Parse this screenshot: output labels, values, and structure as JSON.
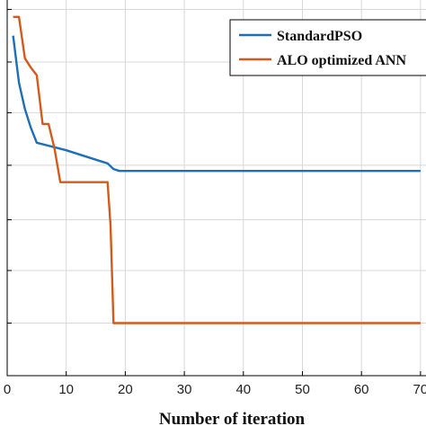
{
  "chart_data": {
    "type": "line",
    "title": "",
    "xlabel": "Number of iteration",
    "ylabel": "",
    "xlim": [
      0,
      70
    ],
    "ylim": [
      0,
      1
    ],
    "x_ticks": [
      0,
      10,
      20,
      30,
      40,
      50,
      60,
      70
    ],
    "x_tick_labels": [
      "0",
      "10",
      "20",
      "30",
      "40",
      "50",
      "60",
      "70"
    ],
    "grid": true,
    "legend_position": "top-right",
    "series": [
      {
        "name": "StandardPSO",
        "color": "#1f6fb4",
        "points": [
          [
            1,
            0.905
          ],
          [
            2,
            0.78
          ],
          [
            3,
            0.71
          ],
          [
            4,
            0.66
          ],
          [
            5,
            0.62
          ],
          [
            10,
            0.6
          ],
          [
            15,
            0.575
          ],
          [
            17,
            0.565
          ],
          [
            18,
            0.55
          ],
          [
            19,
            0.545
          ],
          [
            70,
            0.545
          ]
        ]
      },
      {
        "name": "ALO optimized ANN",
        "color": "#d35a1c",
        "points": [
          [
            1,
            0.955
          ],
          [
            2,
            0.955
          ],
          [
            3,
            0.845
          ],
          [
            4,
            0.82
          ],
          [
            5,
            0.8
          ],
          [
            6,
            0.67
          ],
          [
            7,
            0.67
          ],
          [
            8,
            0.605
          ],
          [
            9,
            0.515
          ],
          [
            17,
            0.515
          ],
          [
            17.5,
            0.4
          ],
          [
            18,
            0.14
          ],
          [
            70,
            0.14
          ]
        ]
      }
    ]
  }
}
